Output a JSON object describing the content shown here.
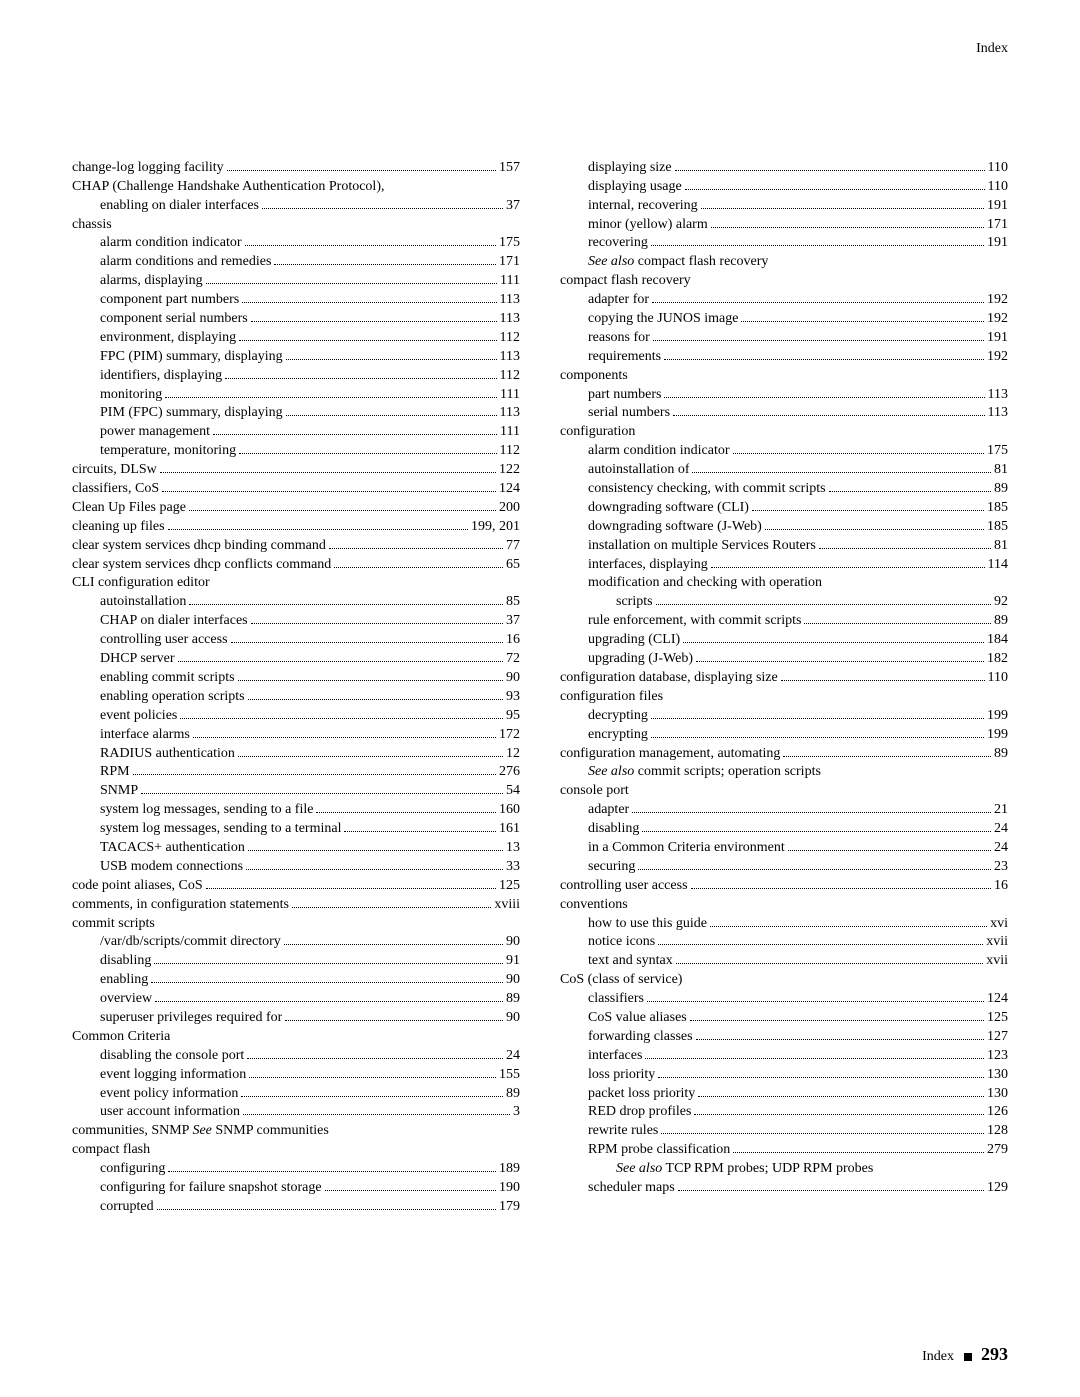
{
  "header": {
    "section": "Index"
  },
  "footer": {
    "label": "Index",
    "page": "293"
  },
  "left": [
    {
      "l": 0,
      "t": "change-log logging facility",
      "p": "157"
    },
    {
      "l": 0,
      "t": "CHAP (Challenge Handshake Authentication Protocol),",
      "nopage": true
    },
    {
      "l": 1,
      "t": "enabling on dialer interfaces",
      "p": "37"
    },
    {
      "l": 0,
      "t": "chassis",
      "nopage": true
    },
    {
      "l": 1,
      "t": "alarm condition indicator",
      "p": "175"
    },
    {
      "l": 1,
      "t": "alarm conditions and remedies",
      "p": "171"
    },
    {
      "l": 1,
      "t": "alarms, displaying",
      "p": "111"
    },
    {
      "l": 1,
      "t": "component part numbers",
      "p": "113"
    },
    {
      "l": 1,
      "t": "component serial numbers",
      "p": "113"
    },
    {
      "l": 1,
      "t": "environment, displaying",
      "p": "112"
    },
    {
      "l": 1,
      "t": "FPC (PIM) summary, displaying",
      "p": "113"
    },
    {
      "l": 1,
      "t": "identifiers, displaying",
      "p": "112"
    },
    {
      "l": 1,
      "t": "monitoring",
      "p": "111"
    },
    {
      "l": 1,
      "t": "PIM (FPC) summary, displaying",
      "p": "113"
    },
    {
      "l": 1,
      "t": "power management",
      "p": "111"
    },
    {
      "l": 1,
      "t": "temperature, monitoring",
      "p": "112"
    },
    {
      "l": 0,
      "t": "circuits, DLSw",
      "p": "122"
    },
    {
      "l": 0,
      "t": "classifiers, CoS",
      "p": "124"
    },
    {
      "l": 0,
      "t": "Clean Up Files page",
      "p": "200"
    },
    {
      "l": 0,
      "t": "cleaning up files",
      "p": "199, 201"
    },
    {
      "l": 0,
      "t": "clear system services dhcp binding command",
      "p": "77"
    },
    {
      "l": 0,
      "t": "clear system services dhcp conflicts command",
      "p": "65"
    },
    {
      "l": 0,
      "t": "CLI configuration editor",
      "nopage": true
    },
    {
      "l": 1,
      "t": "autoinstallation",
      "p": "85"
    },
    {
      "l": 1,
      "t": "CHAP on dialer interfaces",
      "p": "37"
    },
    {
      "l": 1,
      "t": "controlling user access",
      "p": "16"
    },
    {
      "l": 1,
      "t": "DHCP server",
      "p": "72"
    },
    {
      "l": 1,
      "t": "enabling commit scripts",
      "p": "90"
    },
    {
      "l": 1,
      "t": "enabling operation scripts",
      "p": "93"
    },
    {
      "l": 1,
      "t": "event policies",
      "p": "95"
    },
    {
      "l": 1,
      "t": "interface alarms",
      "p": "172"
    },
    {
      "l": 1,
      "t": "RADIUS authentication",
      "p": "12"
    },
    {
      "l": 1,
      "t": "RPM",
      "p": "276"
    },
    {
      "l": 1,
      "t": "SNMP",
      "p": "54"
    },
    {
      "l": 1,
      "t": "system log messages, sending to a file",
      "p": "160"
    },
    {
      "l": 1,
      "t": "system log messages, sending to a terminal",
      "p": "161"
    },
    {
      "l": 1,
      "t": "TACACS+ authentication",
      "p": "13"
    },
    {
      "l": 1,
      "t": "USB modem connections",
      "p": "33"
    },
    {
      "l": 0,
      "t": "code point aliases, CoS",
      "p": "125"
    },
    {
      "l": 0,
      "t": "comments, in configuration statements",
      "p": "xviii"
    },
    {
      "l": 0,
      "t": "commit scripts",
      "nopage": true
    },
    {
      "l": 1,
      "t": "/var/db/scripts/commit directory",
      "p": "90"
    },
    {
      "l": 1,
      "t": "disabling",
      "p": "91"
    },
    {
      "l": 1,
      "t": "enabling",
      "p": "90"
    },
    {
      "l": 1,
      "t": "overview",
      "p": "89"
    },
    {
      "l": 1,
      "t": "superuser privileges required for",
      "p": "90"
    },
    {
      "l": 0,
      "t": "Common Criteria",
      "nopage": true
    },
    {
      "l": 1,
      "t": "disabling the console port",
      "p": "24"
    },
    {
      "l": 1,
      "t": "event logging information",
      "p": "155"
    },
    {
      "l": 1,
      "t": "event policy information",
      "p": "89"
    },
    {
      "l": 1,
      "t": "user account information",
      "p": "3"
    },
    {
      "l": 0,
      "t": "communities, SNMP <em>See</em> SNMP communities",
      "nopage": true
    },
    {
      "l": 0,
      "t": "compact flash",
      "nopage": true
    },
    {
      "l": 1,
      "t": "configuring",
      "p": "189"
    },
    {
      "l": 1,
      "t": "configuring for failure snapshot storage",
      "p": "190"
    },
    {
      "l": 1,
      "t": "corrupted",
      "p": "179"
    }
  ],
  "right": [
    {
      "l": 1,
      "t": "displaying size",
      "p": "110"
    },
    {
      "l": 1,
      "t": "displaying usage",
      "p": "110"
    },
    {
      "l": 1,
      "t": "internal, recovering",
      "p": "191"
    },
    {
      "l": 1,
      "t": "minor (yellow) alarm",
      "p": "171"
    },
    {
      "l": 1,
      "t": "recovering",
      "p": "191"
    },
    {
      "l": 1,
      "t": "<em>See also</em> compact flash recovery",
      "nopage": true
    },
    {
      "l": 0,
      "t": "compact flash recovery",
      "nopage": true
    },
    {
      "l": 1,
      "t": "adapter for",
      "p": "192"
    },
    {
      "l": 1,
      "t": "copying the JUNOS image",
      "p": "192"
    },
    {
      "l": 1,
      "t": "reasons for",
      "p": "191"
    },
    {
      "l": 1,
      "t": "requirements",
      "p": "192"
    },
    {
      "l": 0,
      "t": "components",
      "nopage": true
    },
    {
      "l": 1,
      "t": "part numbers",
      "p": "113"
    },
    {
      "l": 1,
      "t": "serial numbers",
      "p": "113"
    },
    {
      "l": 0,
      "t": "configuration",
      "nopage": true
    },
    {
      "l": 1,
      "t": "alarm condition indicator",
      "p": "175"
    },
    {
      "l": 1,
      "t": "autoinstallation of",
      "p": "81"
    },
    {
      "l": 1,
      "t": "consistency checking, with commit scripts",
      "p": "89"
    },
    {
      "l": 1,
      "t": "downgrading software (CLI)",
      "p": "185"
    },
    {
      "l": 1,
      "t": "downgrading software (J-Web)",
      "p": "185"
    },
    {
      "l": 1,
      "t": "installation on multiple Services Routers",
      "p": "81"
    },
    {
      "l": 1,
      "t": "interfaces, displaying",
      "p": "114"
    },
    {
      "l": 1,
      "t": "modification and checking with operation",
      "nopage": true
    },
    {
      "l": 2,
      "t": "scripts",
      "p": "92"
    },
    {
      "l": 1,
      "t": "rule enforcement, with commit scripts",
      "p": "89"
    },
    {
      "l": 1,
      "t": "upgrading (CLI)",
      "p": "184"
    },
    {
      "l": 1,
      "t": "upgrading (J-Web)",
      "p": "182"
    },
    {
      "l": 0,
      "t": "configuration database, displaying size",
      "p": "110"
    },
    {
      "l": 0,
      "t": "configuration files",
      "nopage": true
    },
    {
      "l": 1,
      "t": "decrypting",
      "p": "199"
    },
    {
      "l": 1,
      "t": "encrypting",
      "p": "199"
    },
    {
      "l": 0,
      "t": "configuration management, automating",
      "p": "89"
    },
    {
      "l": 1,
      "t": "<em>See also</em> commit scripts; operation scripts",
      "nopage": true
    },
    {
      "l": 0,
      "t": "console port",
      "nopage": true
    },
    {
      "l": 1,
      "t": "adapter",
      "p": "21"
    },
    {
      "l": 1,
      "t": "disabling",
      "p": "24"
    },
    {
      "l": 1,
      "t": "in a Common Criteria environment",
      "p": "24"
    },
    {
      "l": 1,
      "t": "securing",
      "p": "23"
    },
    {
      "l": 0,
      "t": "controlling user access",
      "p": "16"
    },
    {
      "l": 0,
      "t": "conventions",
      "nopage": true
    },
    {
      "l": 1,
      "t": "how to use this guide",
      "p": "xvi"
    },
    {
      "l": 1,
      "t": "notice icons",
      "p": "xvii"
    },
    {
      "l": 1,
      "t": "text and syntax",
      "p": "xvii"
    },
    {
      "l": 0,
      "t": "CoS (class of service)",
      "nopage": true
    },
    {
      "l": 1,
      "t": "classifiers",
      "p": "124"
    },
    {
      "l": 1,
      "t": "CoS value aliases",
      "p": "125"
    },
    {
      "l": 1,
      "t": "forwarding classes",
      "p": "127"
    },
    {
      "l": 1,
      "t": "interfaces",
      "p": "123"
    },
    {
      "l": 1,
      "t": "loss priority",
      "p": "130"
    },
    {
      "l": 1,
      "t": "packet loss priority",
      "p": "130"
    },
    {
      "l": 1,
      "t": "RED drop profiles",
      "p": "126"
    },
    {
      "l": 1,
      "t": "rewrite rules",
      "p": "128"
    },
    {
      "l": 1,
      "t": "RPM probe classification",
      "p": "279"
    },
    {
      "l": 2,
      "t": "<em>See also</em> TCP RPM probes; UDP RPM probes",
      "nopage": true
    },
    {
      "l": 1,
      "t": "scheduler maps",
      "p": "129"
    }
  ]
}
